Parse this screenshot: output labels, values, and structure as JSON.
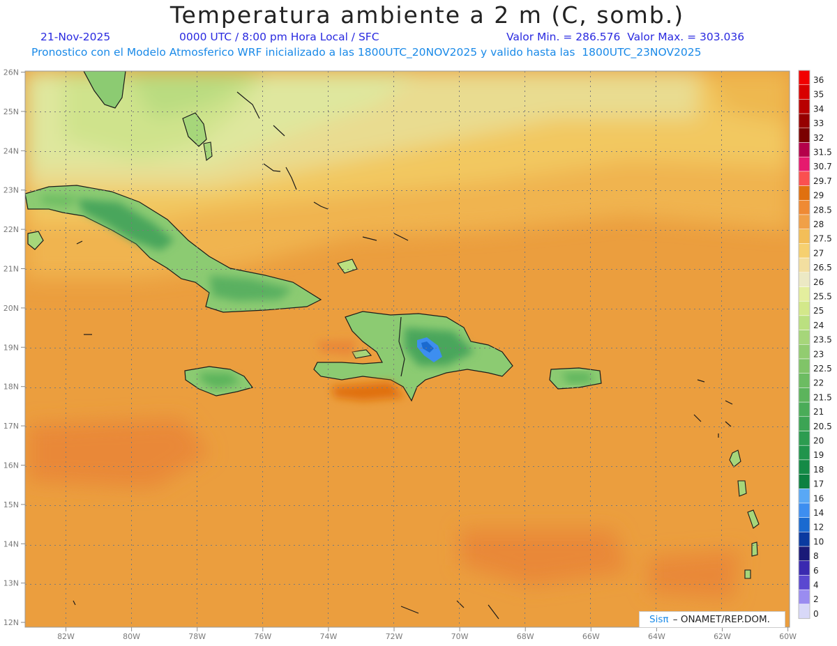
{
  "title": "Temperatura ambiente a 2 m (C, somb.)",
  "subtitle": {
    "date": "21-Nov-2025",
    "time": "0000 UTC / 8:00 pm Hora Local / SFC",
    "value_range": "Valor Min. = 286.576  Valor Max. = 303.036",
    "forecast": "Pronostico con el Modelo Atmosferico WRF inicializado a las 1800UTC_20NOV2025 y valido hasta las  1800UTC_23NOV2025"
  },
  "map": {
    "lon_range": [
      -83.2,
      -60
    ],
    "lat_range": [
      11.9,
      26.1
    ],
    "lon_ticks": [
      "82W",
      "80W",
      "78W",
      "76W",
      "74W",
      "72W",
      "70W",
      "68W",
      "66W",
      "64W",
      "62W",
      "60W"
    ],
    "lat_ticks": [
      "26N",
      "25N",
      "24N",
      "23N",
      "22N",
      "21N",
      "20N",
      "19N",
      "18N",
      "17N",
      "16N",
      "15N",
      "14N",
      "13N",
      "12N"
    ],
    "grid_style": "dotted"
  },
  "colorbar": {
    "labels": [
      "36",
      "35",
      "34",
      "33",
      "32",
      "31.5",
      "30.7",
      "29.7",
      "29",
      "28.5",
      "28",
      "27.5",
      "27",
      "26.5",
      "26",
      "25.5",
      "25",
      "24",
      "23.5",
      "23",
      "22.5",
      "22",
      "21.5",
      "21",
      "20.5",
      "20",
      "19",
      "18",
      "17",
      "16",
      "14",
      "12",
      "10",
      "8",
      "6",
      "4",
      "2",
      "0"
    ],
    "colors": [
      "#f20000",
      "#d80000",
      "#b80000",
      "#960000",
      "#7a0000",
      "#b4004a",
      "#e61a6e",
      "#fa5050",
      "#e07010",
      "#ef8a34",
      "#f0a048",
      "#f3be58",
      "#f6d070",
      "#f3dfa0",
      "#ece9c4",
      "#e4ee9e",
      "#d3e88a",
      "#bbe080",
      "#a6d67a",
      "#92cc70",
      "#80c468",
      "#6cbc62",
      "#5cb45c",
      "#4aac58",
      "#3ca454",
      "#2c9c50",
      "#20944c",
      "#148a46",
      "#0c8040",
      "#59a8f5",
      "#3d8ef0",
      "#1a6ad0",
      "#0a3aa0",
      "#1a1a78",
      "#3a2ab0",
      "#5a48d0",
      "#9a8cf0",
      "#d8d8f8"
    ]
  },
  "credit": {
    "brand": "Sisπ",
    "text": "– ONAMET/REP.DOM."
  }
}
